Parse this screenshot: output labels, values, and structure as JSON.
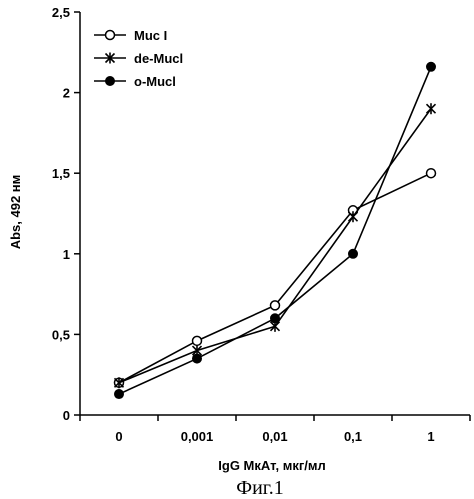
{
  "chart_data": {
    "type": "line",
    "x_scale": "categorical",
    "categories": [
      "0",
      "0,001",
      "0,01",
      "0,1",
      "1"
    ],
    "xlabel": "IgG МкАт, мкг/мл",
    "ylabel": "Abs, 492 нм",
    "ylim": [
      0,
      2.5
    ],
    "yticks": [
      0,
      0.5,
      1,
      1.5,
      2,
      2.5
    ],
    "ytick_labels": [
      "0",
      "0,5",
      "1",
      "1,5",
      "2",
      "2,5"
    ],
    "grid": false,
    "legend_position": "top-left",
    "series": [
      {
        "name": "Muc I",
        "marker": "open-circle",
        "values": [
          0.2,
          0.46,
          0.68,
          1.27,
          1.5
        ]
      },
      {
        "name": "de-Mucl",
        "marker": "asterisk",
        "values": [
          0.2,
          0.4,
          0.55,
          1.23,
          1.9
        ]
      },
      {
        "name": "o-Mucl",
        "marker": "filled-circle",
        "values": [
          0.13,
          0.35,
          0.6,
          1.0,
          2.16
        ]
      }
    ]
  },
  "caption": "Фиг.1"
}
